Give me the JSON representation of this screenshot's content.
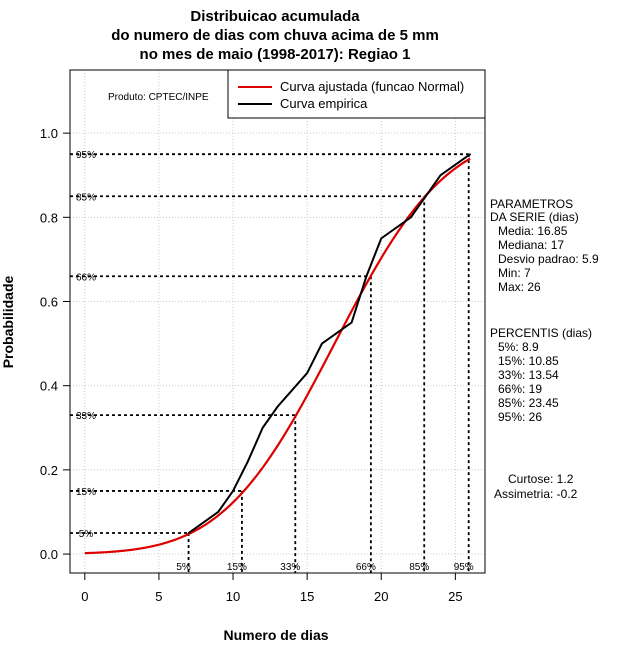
{
  "chart_data": {
    "type": "line",
    "title": [
      "Distribuicao acumulada",
      "do numero de dias com chuva acima de 5 mm",
      "no mes de maio (1998-2017): Regiao 1"
    ],
    "xlabel": "Numero de dias",
    "ylabel": "Probabilidade",
    "xlim": [
      -1,
      27
    ],
    "ylim": [
      -0.045,
      1.15
    ],
    "x_ticks": [
      0,
      5,
      10,
      15,
      20,
      25
    ],
    "y_ticks": [
      0.0,
      0.2,
      0.4,
      0.6,
      0.8,
      1.0
    ],
    "x_tick_labels": [
      "0",
      "5",
      "10",
      "15",
      "20",
      "25"
    ],
    "y_tick_labels": [
      "0.0",
      "0.2",
      "0.4",
      "0.6",
      "0.8",
      "1.0"
    ],
    "grid": true,
    "source_note": "Produto: CPTEC/INPE",
    "legend": {
      "position": "top-right",
      "entries": [
        {
          "label": "Curva ajustada (funcao Normal)",
          "color": "#dd0000"
        },
        {
          "label": "Curva empirica",
          "color": "#000000"
        }
      ]
    },
    "series": [
      {
        "name": "Curva ajustada (funcao Normal)",
        "color": "#dd0000",
        "distribution": "normal",
        "mean": 16.85,
        "sd": 5.9,
        "x_range": [
          0,
          26
        ]
      },
      {
        "name": "Curva empirica",
        "color": "#000000",
        "x": [
          7,
          9,
          10,
          11,
          12,
          13,
          15,
          16,
          18,
          19,
          20,
          22,
          23,
          24,
          26
        ],
        "y": [
          0.05,
          0.1,
          0.15,
          0.22,
          0.3,
          0.35,
          0.43,
          0.5,
          0.55,
          0.66,
          0.75,
          0.8,
          0.85,
          0.9,
          0.95
        ]
      }
    ],
    "percentile_markers": [
      {
        "label": "5%",
        "p": 0.05,
        "x": 7.0
      },
      {
        "label": "15%",
        "p": 0.15,
        "x": 10.6
      },
      {
        "label": "33%",
        "p": 0.33,
        "x": 14.2
      },
      {
        "label": "66%",
        "p": 0.66,
        "x": 19.3
      },
      {
        "label": "85%",
        "p": 0.85,
        "x": 22.9
      },
      {
        "label": "95%",
        "p": 0.95,
        "x": 25.9
      }
    ],
    "parameters": {
      "heading": [
        "PARAMETROS",
        "DA SERIE (dias)"
      ],
      "lines": [
        "Media: 16.85",
        "Mediana: 17",
        "Desvio padrao: 5.9",
        "Min: 7",
        "Max: 26"
      ]
    },
    "percentiles": {
      "heading": "PERCENTIS (dias)",
      "lines": [
        "5%: 8.9",
        "15%: 10.85",
        "33%: 13.54",
        "66%: 19",
        "85%: 23.45",
        "95%: 26"
      ]
    },
    "shape_stats": [
      "Curtose: 1.2",
      "Assimetria: -0.2"
    ]
  }
}
